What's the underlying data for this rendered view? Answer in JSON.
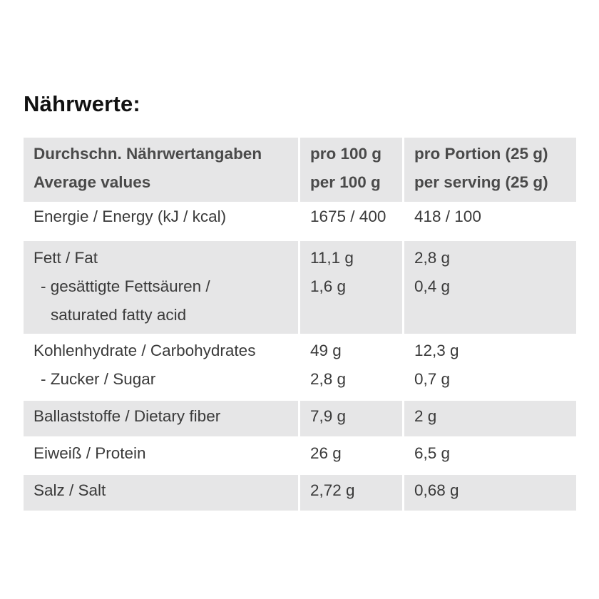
{
  "title": "Nährwerte:",
  "table": {
    "header": {
      "col1": [
        "Durchschn. Nährwertangaben",
        "Average values"
      ],
      "col2": [
        "pro 100 g",
        "per 100 g"
      ],
      "col3": [
        "pro Portion (25 g)",
        "per serving (25 g)"
      ]
    },
    "rows": [
      {
        "label": [
          "Energie / Energy (kJ / kcal)"
        ],
        "per100": [
          "1675 / 400"
        ],
        "perServing": [
          "418 / 100"
        ]
      },
      {
        "label": [
          "Fett / Fat",
          "- gesättigte Fettsäuren /",
          "saturated fatty acid"
        ],
        "per100": [
          "11,1 g",
          "1,6 g"
        ],
        "perServing": [
          "2,8 g",
          "0,4 g"
        ]
      },
      {
        "label": [
          "Kohlenhydrate / Carbohydrates",
          "- Zucker / Sugar"
        ],
        "per100": [
          "49 g",
          "2,8 g"
        ],
        "perServing": [
          "12,3 g",
          "0,7 g"
        ]
      },
      {
        "label": [
          "Ballaststoffe / Dietary fiber"
        ],
        "per100": [
          "7,9 g"
        ],
        "perServing": [
          "2 g"
        ]
      },
      {
        "label": [
          "Eiweiß / Protein"
        ],
        "per100": [
          "26 g"
        ],
        "perServing": [
          "6,5 g"
        ]
      },
      {
        "label": [
          "Salz / Salt"
        ],
        "per100": [
          "2,72 g"
        ],
        "perServing": [
          "0,68 g"
        ]
      }
    ]
  }
}
